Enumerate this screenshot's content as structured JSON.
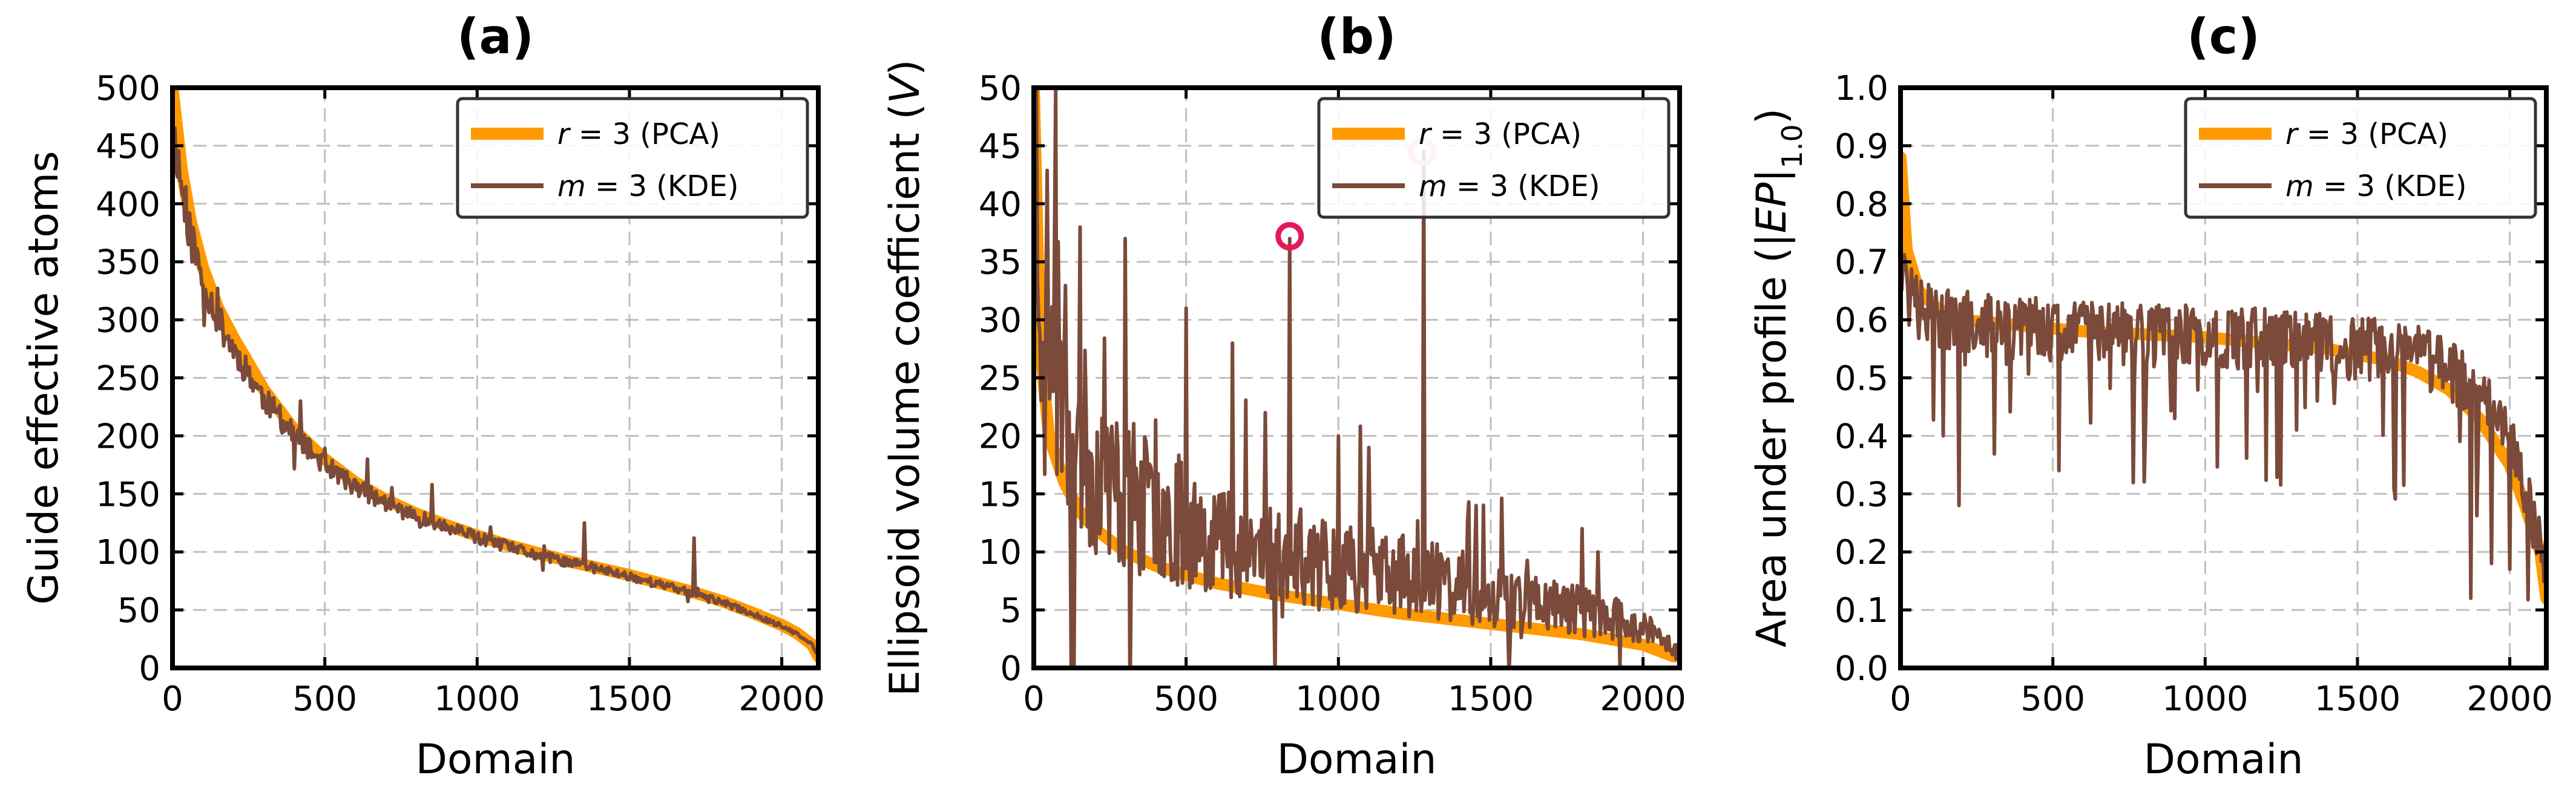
{
  "figure": {
    "panels_label": [
      "(a)",
      "(b)",
      "(c)"
    ]
  },
  "colors": {
    "pca": "#ff9a00",
    "kde": "#7b4a3a",
    "grid": "#bfbfbf",
    "marker_strong": "#e8175d",
    "marker_faint": "#f7a8bf"
  },
  "chart_data": [
    {
      "type": "line",
      "title": "(a)",
      "xlabel": "Domain",
      "ylabel": "Guide effective atoms",
      "xlim": [
        0,
        2120
      ],
      "ylim": [
        0,
        500
      ],
      "xticks": [
        0,
        500,
        1000,
        1500,
        2000
      ],
      "yticks": [
        0,
        50,
        100,
        150,
        200,
        250,
        300,
        350,
        400,
        450,
        500
      ],
      "grid": true,
      "legend_position": "top-right",
      "series": [
        {
          "name": "r = 3 (PCA)",
          "label_prefix": "r",
          "label_suffix": " = 3 (PCA)",
          "color": "pca",
          "width": 20,
          "x": [
            0,
            30,
            60,
            100,
            150,
            200,
            300,
            400,
            500,
            600,
            700,
            800,
            900,
            1000,
            1100,
            1200,
            1300,
            1400,
            1500,
            1600,
            1700,
            1800,
            1900,
            2000,
            2050,
            2100,
            2120
          ],
          "y": [
            500,
            430,
            385,
            345,
            310,
            285,
            240,
            205,
            180,
            160,
            145,
            133,
            123,
            114,
            106,
            99,
            92,
            86,
            80,
            73,
            66,
            58,
            48,
            37,
            30,
            20,
            10
          ]
        },
        {
          "name": "m = 3 (KDE)",
          "label_prefix": "m",
          "label_suffix": " = 3 (KDE)",
          "color": "kde",
          "width": 6,
          "noisy": true,
          "noise_amp": 0.05,
          "seed": 11,
          "x": [
            0,
            30,
            60,
            100,
            150,
            200,
            300,
            400,
            500,
            600,
            700,
            800,
            900,
            1000,
            1100,
            1200,
            1300,
            1400,
            1500,
            1600,
            1700,
            1800,
            1900,
            2000,
            2050,
            2100,
            2120
          ],
          "y": [
            470,
            415,
            370,
            335,
            300,
            275,
            232,
            200,
            175,
            156,
            142,
            130,
            121,
            112,
            104,
            97,
            91,
            85,
            79,
            72,
            65,
            57,
            47,
            36,
            29,
            20,
            10
          ],
          "spikes": [
            [
              420,
              230
            ],
            [
              640,
              180
            ],
            [
              850,
              158
            ],
            [
              1350,
              125
            ],
            [
              1710,
              112
            ]
          ]
        }
      ]
    },
    {
      "type": "line",
      "title": "(b)",
      "xlabel": "Domain",
      "ylabel": "Ellipsoid volume coefficient (V)",
      "ylabel_main": "Ellipsoid volume coefficient (",
      "ylabel_italic": "V",
      "ylabel_close": ")",
      "xlim": [
        0,
        2120
      ],
      "ylim": [
        0,
        50
      ],
      "xticks": [
        0,
        500,
        1000,
        1500,
        2000
      ],
      "yticks": [
        0,
        5,
        10,
        15,
        20,
        25,
        30,
        35,
        40,
        45,
        50
      ],
      "grid": true,
      "legend_position": "top-right",
      "series": [
        {
          "name": "r = 3 (PCA)",
          "label_prefix": "r",
          "label_suffix": " = 3 (PCA)",
          "color": "pca",
          "width": 20,
          "x": [
            0,
            20,
            50,
            100,
            150,
            200,
            300,
            400,
            500,
            600,
            700,
            800,
            1000,
            1200,
            1400,
            1600,
            1800,
            2000,
            2100
          ],
          "y": [
            50,
            28,
            20,
            16,
            13.5,
            12,
            10,
            8.8,
            8,
            7.3,
            6.8,
            6.3,
            5.5,
            4.7,
            4.1,
            3.5,
            2.9,
            2.0,
            1.0
          ]
        },
        {
          "name": "m = 3 (KDE)",
          "label_prefix": "m",
          "label_suffix": " = 3 (KDE)",
          "color": "kde",
          "width": 6,
          "noisy": true,
          "noise_amp": 0.45,
          "seed": 23,
          "x": [
            0,
            20,
            50,
            100,
            150,
            200,
            300,
            400,
            500,
            600,
            700,
            800,
            1000,
            1200,
            1400,
            1600,
            1800,
            2000,
            2100
          ],
          "y": [
            50,
            38,
            30,
            24,
            20,
            17,
            15,
            13.5,
            12.5,
            11.5,
            10.5,
            9.8,
            9,
            8,
            7,
            6,
            5,
            3.5,
            1.8
          ],
          "spikes": [
            [
              70,
              50
            ],
            [
              150,
              38
            ],
            [
              300,
              37
            ],
            [
              500,
              31
            ],
            [
              650,
              28
            ],
            [
              760,
              22
            ],
            [
              840,
              37
            ],
            [
              1000,
              20
            ],
            [
              1100,
              19
            ],
            [
              1280,
              44.5
            ],
            [
              1450,
              14
            ],
            [
              1800,
              12
            ],
            [
              1850,
              10
            ]
          ]
        }
      ],
      "markers": [
        {
          "x": 840,
          "y": 37.2,
          "style": "marker_strong"
        },
        {
          "x": 1275,
          "y": 44.5,
          "style": "marker_faint"
        }
      ]
    },
    {
      "type": "line",
      "title": "(c)",
      "xlabel": "Domain",
      "ylabel": "Area under profile (|EP|1.0)",
      "ylabel_main": "Area under profile (|",
      "ylabel_italic": "EP",
      "ylabel_close": "|",
      "ylabel_sub": "1.0",
      "ylabel_end": ")",
      "xlim": [
        0,
        2120
      ],
      "ylim": [
        0,
        1.0
      ],
      "xticks": [
        0,
        500,
        1000,
        1500,
        2000
      ],
      "yticks": [
        0.0,
        0.1,
        0.2,
        0.3,
        0.4,
        0.5,
        0.6,
        0.7,
        0.8,
        0.9,
        1.0
      ],
      "ytick_labels": [
        "0.0",
        "0.1",
        "0.2",
        "0.3",
        "0.4",
        "0.5",
        "0.6",
        "0.7",
        "0.8",
        "0.9",
        "1.0"
      ],
      "grid": true,
      "legend_position": "top-right",
      "series": [
        {
          "name": "r = 3 (PCA)",
          "label_prefix": "r",
          "label_suffix": " = 3 (PCA)",
          "color": "pca",
          "width": 20,
          "x": [
            0,
            20,
            60,
            120,
            200,
            400,
            600,
            800,
            1000,
            1200,
            1400,
            1600,
            1700,
            1800,
            1900,
            2000,
            2050,
            2100,
            2120
          ],
          "y": [
            0.88,
            0.72,
            0.65,
            0.62,
            0.6,
            0.59,
            0.58,
            0.575,
            0.57,
            0.56,
            0.55,
            0.53,
            0.51,
            0.48,
            0.43,
            0.35,
            0.28,
            0.2,
            0.12
          ]
        },
        {
          "name": "m = 3 (KDE)",
          "label_prefix": "m",
          "label_suffix": " = 3 (KDE)",
          "color": "kde",
          "width": 6,
          "noisy": true,
          "noise_amp": 0.07,
          "down_only": true,
          "seed": 37,
          "x": [
            0,
            20,
            60,
            120,
            200,
            400,
            600,
            800,
            1000,
            1200,
            1400,
            1600,
            1700,
            1800,
            1900,
            2000,
            2050,
            2100,
            2120
          ],
          "y": [
            0.75,
            0.66,
            0.63,
            0.62,
            0.61,
            0.6,
            0.595,
            0.59,
            0.585,
            0.58,
            0.57,
            0.56,
            0.55,
            0.53,
            0.49,
            0.4,
            0.32,
            0.22,
            0.12
          ],
          "spikes": [
            [
              140,
              0.4
            ],
            [
              190,
              0.28
            ],
            [
              520,
              0.34
            ],
            [
              900,
              0.43
            ],
            [
              1300,
              0.41
            ],
            [
              1620,
              0.31
            ],
            [
              1870,
              0.12
            ],
            [
              1940,
              0.18
            ],
            [
              2000,
              0.17
            ]
          ]
        }
      ]
    }
  ]
}
